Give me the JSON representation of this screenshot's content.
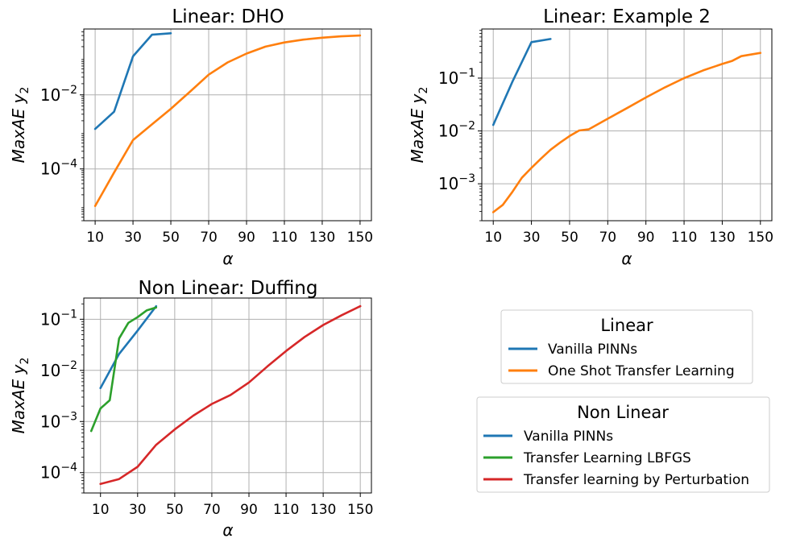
{
  "chart_data": [
    {
      "type": "line",
      "title": "Linear: DHO",
      "xlabel": "α",
      "ylabel": "MaxAE y₂",
      "yscale": "log",
      "xlim": [
        4,
        156
      ],
      "ylim": [
        4e-06,
        0.6
      ],
      "xticks": [
        10,
        30,
        50,
        70,
        90,
        110,
        130,
        150
      ],
      "yticks": [
        {
          "value": 0.0001,
          "base": "10",
          "exp": "−4"
        },
        {
          "value": 0.01,
          "base": "10",
          "exp": "−2"
        }
      ],
      "grid": true,
      "series": [
        {
          "name": "Vanilla PINNs",
          "color": "#1f77b4",
          "x": [
            10,
            20,
            30,
            40,
            50
          ],
          "y": [
            0.0012,
            0.0035,
            0.11,
            0.42,
            0.46
          ]
        },
        {
          "name": "One Shot Transfer Learning",
          "color": "#ff7f0e",
          "x": [
            10,
            20,
            30,
            40,
            50,
            60,
            70,
            80,
            90,
            100,
            110,
            120,
            130,
            140,
            150
          ],
          "y": [
            1e-05,
            8e-05,
            0.0006,
            0.0016,
            0.0042,
            0.012,
            0.035,
            0.075,
            0.13,
            0.2,
            0.26,
            0.31,
            0.35,
            0.38,
            0.4
          ]
        }
      ]
    },
    {
      "type": "line",
      "title": "Linear: Example 2",
      "xlabel": "α",
      "ylabel": "MaxAE y₂",
      "yscale": "log",
      "xlim": [
        4,
        156
      ],
      "ylim": [
        0.0002,
        0.85
      ],
      "xticks": [
        10,
        30,
        50,
        70,
        90,
        110,
        130,
        150
      ],
      "yticks": [
        {
          "value": 0.001,
          "base": "10",
          "exp": "−3"
        },
        {
          "value": 0.01,
          "base": "10",
          "exp": "−2"
        },
        {
          "value": 0.1,
          "base": "10",
          "exp": "−1"
        }
      ],
      "grid": true,
      "series": [
        {
          "name": "Vanilla PINNs",
          "color": "#1f77b4",
          "x": [
            10,
            20,
            30,
            40
          ],
          "y": [
            0.013,
            0.085,
            0.48,
            0.55
          ]
        },
        {
          "name": "One Shot Transfer Learning",
          "color": "#ff7f0e",
          "x": [
            10,
            15,
            20,
            25,
            30,
            35,
            40,
            45,
            50,
            55,
            60,
            70,
            80,
            90,
            100,
            110,
            120,
            130,
            135,
            140,
            150
          ],
          "y": [
            0.00029,
            0.0004,
            0.0007,
            0.0013,
            0.002,
            0.003,
            0.0044,
            0.006,
            0.008,
            0.0102,
            0.0107,
            0.017,
            0.027,
            0.043,
            0.067,
            0.1,
            0.14,
            0.185,
            0.21,
            0.26,
            0.3
          ]
        }
      ]
    },
    {
      "type": "line",
      "title": "Non Linear: Duffing",
      "xlabel": "α",
      "ylabel": "MaxAE y₂",
      "yscale": "log",
      "xlim": [
        1,
        156
      ],
      "ylim": [
        4e-05,
        0.26
      ],
      "xticks": [
        10,
        30,
        50,
        70,
        90,
        110,
        130,
        150
      ],
      "yticks": [
        {
          "value": 0.0001,
          "base": "10",
          "exp": "−4"
        },
        {
          "value": 0.001,
          "base": "10",
          "exp": "−3"
        },
        {
          "value": 0.01,
          "base": "10",
          "exp": "−2"
        },
        {
          "value": 0.1,
          "base": "10",
          "exp": "−1"
        }
      ],
      "grid": true,
      "series": [
        {
          "name": "Vanilla PINNs",
          "color": "#1f77b4",
          "x": [
            10,
            20,
            30,
            40
          ],
          "y": [
            0.0045,
            0.021,
            0.06,
            0.18
          ]
        },
        {
          "name": "Transfer Learning LBFGS",
          "color": "#2ca02c",
          "x": [
            5,
            10,
            15,
            20,
            25,
            30,
            35,
            40
          ],
          "y": [
            0.00065,
            0.0018,
            0.0026,
            0.042,
            0.085,
            0.11,
            0.15,
            0.17
          ]
        },
        {
          "name": "Transfer learning by Perturbation",
          "color": "#d62728",
          "x": [
            10,
            20,
            30,
            40,
            50,
            60,
            70,
            80,
            90,
            100,
            110,
            120,
            130,
            140,
            150
          ],
          "y": [
            6e-05,
            7.5e-05,
            0.00013,
            0.00035,
            0.0007,
            0.0013,
            0.0022,
            0.0033,
            0.0058,
            0.012,
            0.024,
            0.045,
            0.077,
            0.12,
            0.18
          ]
        }
      ]
    }
  ],
  "legends": [
    {
      "title": "Linear",
      "items": [
        {
          "label": "Vanilla PINNs",
          "color": "#1f77b4"
        },
        {
          "label": "One Shot Transfer Learning",
          "color": "#ff7f0e"
        }
      ]
    },
    {
      "title": "Non Linear",
      "items": [
        {
          "label": "Vanilla PINNs",
          "color": "#1f77b4"
        },
        {
          "label": "Transfer Learning LBFGS",
          "color": "#2ca02c"
        },
        {
          "label": "Transfer learning by Perturbation",
          "color": "#d62728"
        }
      ]
    }
  ]
}
